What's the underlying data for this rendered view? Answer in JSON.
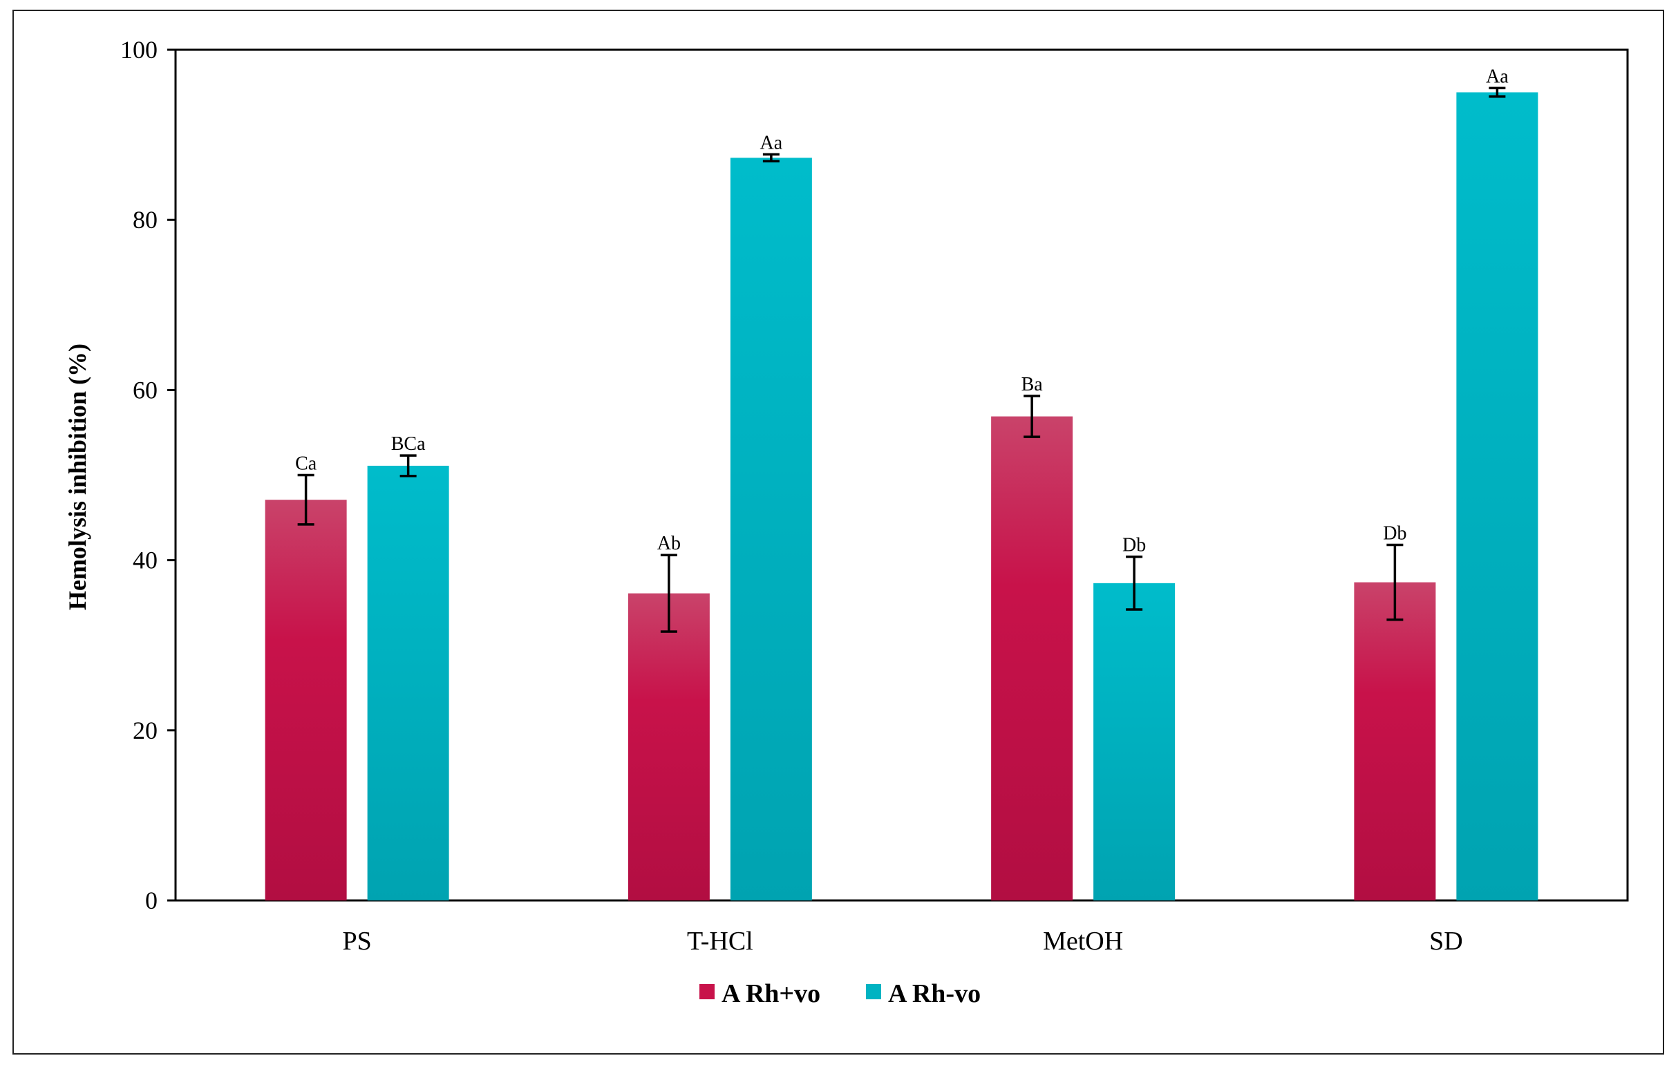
{
  "chart_data": {
    "type": "bar",
    "title": "",
    "xlabel": "",
    "ylabel": "Hemolysis inhibition (%)",
    "ylim": [
      0,
      100
    ],
    "yticks": [
      0,
      20,
      40,
      60,
      80,
      100
    ],
    "grid": false,
    "legend_position": "bottom-center",
    "categories": [
      "PS",
      "T-HCl",
      "MetOH",
      "SD"
    ],
    "series": [
      {
        "name": "A Rh+vo",
        "color": "#c8124a",
        "values": [
          47.1,
          36.1,
          56.9,
          37.4
        ],
        "errors": [
          2.9,
          4.5,
          2.4,
          4.4
        ],
        "labels": [
          "Ca",
          "Ab",
          "Ba",
          "Db"
        ]
      },
      {
        "name": "A Rh-vo",
        "color": "#00b3c2",
        "values": [
          51.1,
          87.3,
          37.3,
          95.0
        ],
        "errors": [
          1.2,
          0.4,
          3.1,
          0.5
        ],
        "labels": [
          "BCa",
          "Aa",
          "Db",
          "Aa"
        ]
      }
    ]
  }
}
